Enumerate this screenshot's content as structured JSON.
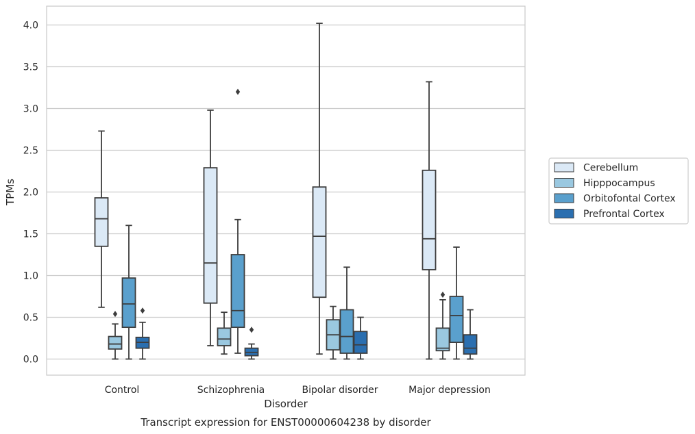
{
  "chart_data": {
    "type": "box",
    "caption": "Transcript expression for ENST00000604238 by disorder",
    "xlabel": "Disorder",
    "ylabel": "TPMs",
    "ylim": [
      -0.2,
      4.22
    ],
    "yticks": [
      "0.0",
      "0.5",
      "1.0",
      "1.5",
      "2.0",
      "2.5",
      "3.0",
      "3.5",
      "4.0"
    ],
    "ytick_values": [
      0,
      0.5,
      1.0,
      1.5,
      2.0,
      2.5,
      3.0,
      3.5,
      4.0
    ],
    "grid": "horizontal",
    "legend_position": "right",
    "categories": [
      "Control",
      "Schizophrenia",
      "Bipolar disorder",
      "Major depression"
    ],
    "series": [
      {
        "name": "Cerebellum",
        "color": "#dbe9f6",
        "boxes": [
          {
            "whislo": 0.62,
            "q1": 1.35,
            "med": 1.68,
            "q3": 1.93,
            "whishi": 2.73,
            "fliers": []
          },
          {
            "whislo": 0.16,
            "q1": 0.67,
            "med": 1.15,
            "q3": 2.29,
            "whishi": 2.98,
            "fliers": []
          },
          {
            "whislo": 0.06,
            "q1": 0.74,
            "med": 1.47,
            "q3": 2.06,
            "whishi": 4.02,
            "fliers": []
          },
          {
            "whislo": 0.0,
            "q1": 1.07,
            "med": 1.44,
            "q3": 2.26,
            "whishi": 3.32,
            "fliers": []
          }
        ]
      },
      {
        "name": "Hipppocampus",
        "color": "#9ac8e0",
        "boxes": [
          {
            "whislo": 0.0,
            "q1": 0.12,
            "med": 0.18,
            "q3": 0.27,
            "whishi": 0.42,
            "fliers": [
              0.54
            ]
          },
          {
            "whislo": 0.06,
            "q1": 0.16,
            "med": 0.24,
            "q3": 0.37,
            "whishi": 0.56,
            "fliers": []
          },
          {
            "whislo": 0.0,
            "q1": 0.11,
            "med": 0.29,
            "q3": 0.47,
            "whishi": 0.63,
            "fliers": []
          },
          {
            "whislo": 0.0,
            "q1": 0.1,
            "med": 0.13,
            "q3": 0.37,
            "whishi": 0.71,
            "fliers": [
              0.77
            ]
          }
        ]
      },
      {
        "name": "Orbitofontal Cortex",
        "color": "#5aa0cd",
        "boxes": [
          {
            "whislo": 0.0,
            "q1": 0.38,
            "med": 0.66,
            "q3": 0.97,
            "whishi": 1.6,
            "fliers": []
          },
          {
            "whislo": 0.07,
            "q1": 0.38,
            "med": 0.58,
            "q3": 1.25,
            "whishi": 1.67,
            "fliers": [
              3.2
            ]
          },
          {
            "whislo": 0.0,
            "q1": 0.07,
            "med": 0.27,
            "q3": 0.59,
            "whishi": 1.1,
            "fliers": []
          },
          {
            "whislo": 0.0,
            "q1": 0.2,
            "med": 0.52,
            "q3": 0.75,
            "whishi": 1.34,
            "fliers": []
          }
        ]
      },
      {
        "name": "Prefrontal Cortex",
        "color": "#2b6fb0",
        "boxes": [
          {
            "whislo": 0.0,
            "q1": 0.13,
            "med": 0.2,
            "q3": 0.26,
            "whishi": 0.44,
            "fliers": [
              0.58
            ]
          },
          {
            "whislo": 0.0,
            "q1": 0.04,
            "med": 0.08,
            "q3": 0.13,
            "whishi": 0.18,
            "fliers": [
              0.35
            ]
          },
          {
            "whislo": 0.0,
            "q1": 0.07,
            "med": 0.17,
            "q3": 0.33,
            "whishi": 0.5,
            "fliers": []
          },
          {
            "whislo": 0.0,
            "q1": 0.06,
            "med": 0.13,
            "q3": 0.29,
            "whishi": 0.59,
            "fliers": []
          }
        ]
      }
    ]
  }
}
